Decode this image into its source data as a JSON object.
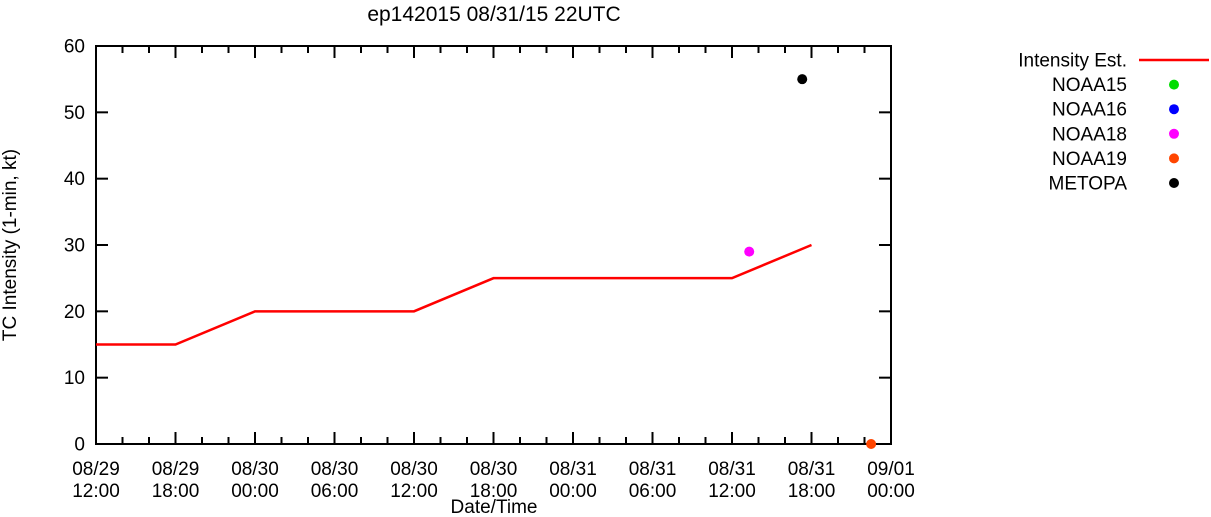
{
  "chart_data": {
    "type": "line",
    "title": "ep142015 08/31/15 22UTC",
    "xlabel": "Date/Time",
    "ylabel": "TC Intensity (1-min, kt)",
    "ylim": [
      0,
      60
    ],
    "xlim_hours": [
      0,
      60
    ],
    "grid": false,
    "legend_position": "outside-right",
    "colors": {
      "axis": "#000000",
      "background": "#ffffff"
    },
    "y_ticks": [
      0,
      10,
      20,
      30,
      40,
      50,
      60
    ],
    "x_minor_tick_hours": 2,
    "x_major_ticks": [
      {
        "hours": 0,
        "date": "08/29",
        "time": "12:00"
      },
      {
        "hours": 6,
        "date": "08/29",
        "time": "18:00"
      },
      {
        "hours": 12,
        "date": "08/30",
        "time": "00:00"
      },
      {
        "hours": 18,
        "date": "08/30",
        "time": "06:00"
      },
      {
        "hours": 24,
        "date": "08/30",
        "time": "12:00"
      },
      {
        "hours": 30,
        "date": "08/30",
        "time": "18:00"
      },
      {
        "hours": 36,
        "date": "08/31",
        "time": "00:00"
      },
      {
        "hours": 42,
        "date": "08/31",
        "time": "06:00"
      },
      {
        "hours": 48,
        "date": "08/31",
        "time": "12:00"
      },
      {
        "hours": 54,
        "date": "08/31",
        "time": "18:00"
      },
      {
        "hours": 60,
        "date": "09/01",
        "time": "00:00"
      }
    ],
    "series": [
      {
        "name": "Intensity Est.",
        "type": "line",
        "color": "#ff0000",
        "points": [
          {
            "t": "08/29 12:00",
            "hours": 0,
            "kt": 15
          },
          {
            "t": "08/29 18:00",
            "hours": 6,
            "kt": 15
          },
          {
            "t": "08/30 00:00",
            "hours": 12,
            "kt": 20
          },
          {
            "t": "08/30 12:00",
            "hours": 24,
            "kt": 20
          },
          {
            "t": "08/30 18:00",
            "hours": 30,
            "kt": 25
          },
          {
            "t": "08/31 12:00",
            "hours": 48,
            "kt": 25
          },
          {
            "t": "08/31 18:00",
            "hours": 54,
            "kt": 30
          }
        ]
      },
      {
        "name": "NOAA15",
        "type": "scatter",
        "color": "#00dd00",
        "points": []
      },
      {
        "name": "NOAA16",
        "type": "scatter",
        "color": "#0000ff",
        "points": []
      },
      {
        "name": "NOAA18",
        "type": "scatter",
        "color": "#ff00ff",
        "points": [
          {
            "t": "08/31 13:30",
            "hours": 49.3,
            "kt": 29
          }
        ]
      },
      {
        "name": "NOAA19",
        "type": "scatter",
        "color": "#ff4500",
        "points": [
          {
            "t": "08/31 22:30",
            "hours": 58.5,
            "kt": 0
          }
        ]
      },
      {
        "name": "METOPA",
        "type": "scatter",
        "color": "#000000",
        "points": [
          {
            "t": "08/31 17:30",
            "hours": 53.3,
            "kt": 55
          }
        ]
      }
    ]
  }
}
